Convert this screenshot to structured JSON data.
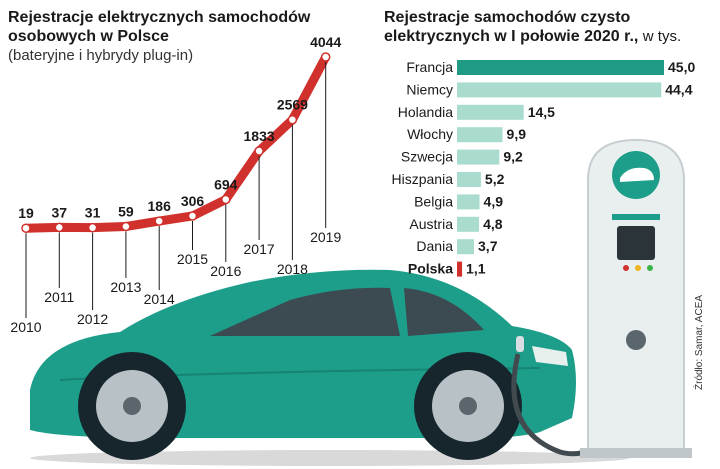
{
  "colors": {
    "line": "#d0312d",
    "bar_primary": "#1f9b85",
    "bar_secondary": "#a9dccf",
    "bar_poland": "#d0312d",
    "car_body": "#1d9e8a",
    "text": "#1a1a1a"
  },
  "chart_data": [
    {
      "type": "line",
      "title": "Rejestracje elektrycznych samochodów osobowych w Polsce",
      "subtitle": "(bateryjne i hybrydy plug-in)",
      "x": [
        "2010",
        "2011",
        "2012",
        "2013",
        "2014",
        "2015",
        "2016",
        "2017",
        "2018",
        "2019"
      ],
      "values": [
        19,
        37,
        31,
        59,
        186,
        306,
        694,
        1833,
        2569,
        4044
      ],
      "data_labels": [
        "19",
        "37",
        "31",
        "59",
        "186",
        "306",
        "694",
        "1833",
        "2569",
        "4044"
      ],
      "ylim": [
        0,
        4044
      ],
      "grid": false
    },
    {
      "type": "bar",
      "orientation": "horizontal",
      "title": "Rejestracje samochodów czysto elektrycznych w I połowie 2020 r.,",
      "unit": "w tys.",
      "categories": [
        "Francja",
        "Niemcy",
        "Holandia",
        "Włochy",
        "Szwecja",
        "Hiszpania",
        "Belgia",
        "Austria",
        "Dania",
        "Polska"
      ],
      "values": [
        45.0,
        44.4,
        14.5,
        9.9,
        9.2,
        5.2,
        4.9,
        4.8,
        3.7,
        1.1
      ],
      "data_labels": [
        "45,0",
        "44,4",
        "14,5",
        "9,9",
        "9,2",
        "5,2",
        "4,9",
        "4,8",
        "3,7",
        "1,1"
      ],
      "highlight": [
        "Francja",
        "Polska"
      ],
      "xlim": [
        0,
        45
      ],
      "grid": false
    }
  ],
  "source": "Źródło: Samar, ACEA"
}
